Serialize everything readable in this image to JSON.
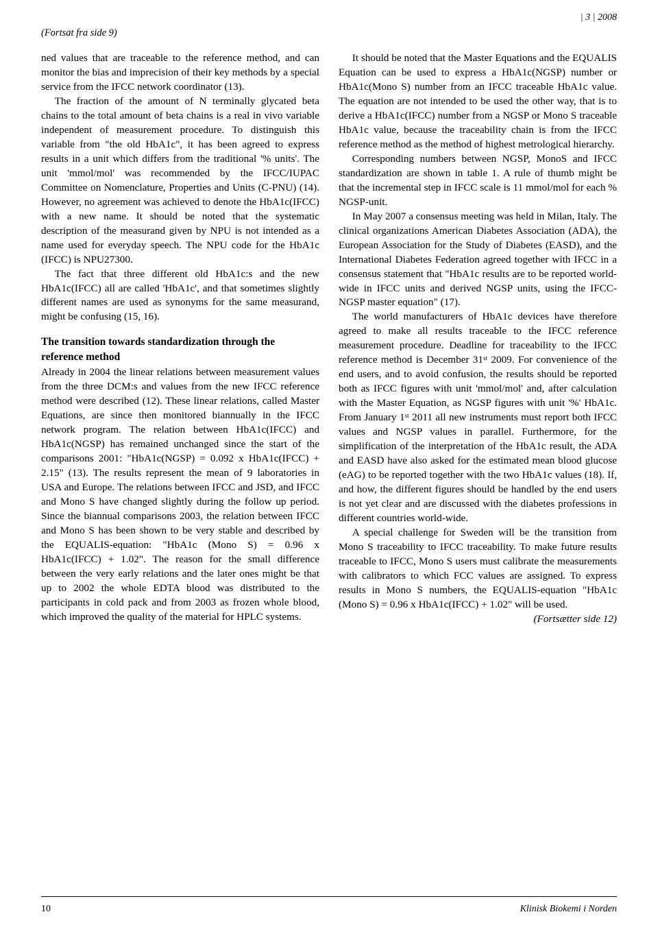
{
  "header": {
    "issue_year": "| 3 | 2008"
  },
  "continued_from": "(Fortsat fra side 9)",
  "left_column": {
    "p1": "ned values that are traceable to the reference method, and can monitor the bias and imprecision of their key methods by a special service from the IFCC network coordinator (13).",
    "p2": "The fraction of the amount of N terminally glycated beta chains to the total amount of beta chains is a real in vivo variable independent of measurement procedure. To distinguish this variable from \"the old HbA1c\", it has been agreed to express results in a unit which differs from the traditional '% units'. The unit 'mmol/mol' was recommended by the IFCC/IUPAC Committee on Nomenclature, Properties and Units (C-PNU) (14). However, no agreement was achieved to denote the HbA1c(IFCC) with a new name. It should be noted that the systematic description of the measurand given by NPU is not intended as a name used for everyday speech. The NPU code for the HbA1c (IFCC) is NPU27300.",
    "p3": "The fact that three different old HbA1c:s and the new HbA1c(IFCC) all are called 'HbA1c', and that sometimes slightly different names are used as synonyms for the same measurand, might be confusing (15, 16).",
    "heading1": "The transition towards standardization through the reference method",
    "p4a": "Already in 2004 the linear relations between measurement values from the three DCM:s and values from the new IFCC reference method were described (12). These linear relations, called Master Equations, are since then monitored biannually in the IFCC network program. The relation between HbA1c(IFCC) and HbA1c(NGSP) has remained unchanged since the start of the comparisons 2001: \"HbA1c(NGSP) = 0.092 x HbA1c(IFCC) + 2.15\" (13). The results represent the mean of 9 laboratories in USA and Europe. The relations between IFCC and JSD, and IFCC and Mono S have changed slightly during the follow up period. Since the biannual comparisons 2003, the relation between IFCC and Mono S has been shown to be very stable and described by the EQUALIS-equation: \"HbA1c (Mono S) = 0.96 x HbA1c(IFCC) + 1.02\". The reason for the small difference between the very early relations and the later ones might be that up to 2002 the whole EDTA blood was distributed to the participants in cold pack and from 2003 as frozen whole blood, which improved the quality of the material for HPLC systems."
  },
  "right_column": {
    "p1": "It should be noted that the Master Equations and the EQUALIS Equation can be used to express a HbA1c(NGSP) number or HbA1c(Mono S) number from an IFCC traceable HbA1c value. The equation are not intended to be used the other way, that is to derive a HbA1c(IFCC) number from a NGSP or Mono S traceable HbA1c value, because the traceability chain is from the IFCC reference method as the method of highest metrological hierarchy.",
    "p2": "Corresponding numbers between NGSP, MonoS and IFCC standardization are shown in table 1. A rule of thumb might be that the incremental step in IFCC scale is 11 mmol/mol for each % NGSP-unit.",
    "p3": "In May 2007 a consensus meeting was held in Milan, Italy. The clinical organizations American Diabetes Association (ADA), the European Association for the Study of Diabetes (EASD), and the International Diabetes Federation agreed together with IFCC in a consensus statement that \"HbA1c results are to be reported world-wide in IFCC units and derived NGSP units, using the IFCC-NGSP master equation\" (17).",
    "p4": "The world manufacturers of HbA1c devices have therefore agreed to make all results traceable to the IFCC reference measurement procedure. Deadline for traceability to the IFCC reference method is December 31ˢᵗ 2009. For convenience of the end users, and to avoid confusion, the results should be reported both as IFCC figures with unit 'mmol/mol' and, after calculation with the Master Equation, as NGSP figures with unit '%' HbA1c. From January 1ˢᵗ 2011 all new instruments must report both IFCC values and NGSP values in parallel. Furthermore, for the simplification of the interpretation of the HbA1c result, the ADA and EASD have also asked for the estimated mean blood glucose (eAG) to be reported together with the two HbA1c values (18). If, and how, the different figures should be handled by the end users is not yet clear and are discussed with the diabetes professions in different countries world-wide.",
    "p5": "A special challenge for Sweden will be the transition from Mono S traceability to IFCC traceability. To make future results traceable to IFCC, Mono S users must calibrate the measurements with calibrators to which FCC values are assigned. To express results in Mono S numbers, the EQUALIS-equation \"HbA1c (Mono S) = 0.96 x HbA1c(IFCC) + 1.02\" will be used."
  },
  "continues_on": "(Fortsætter side 12)",
  "footer": {
    "page_number": "10",
    "publication": "Klinisk Biokemi i Norden"
  }
}
